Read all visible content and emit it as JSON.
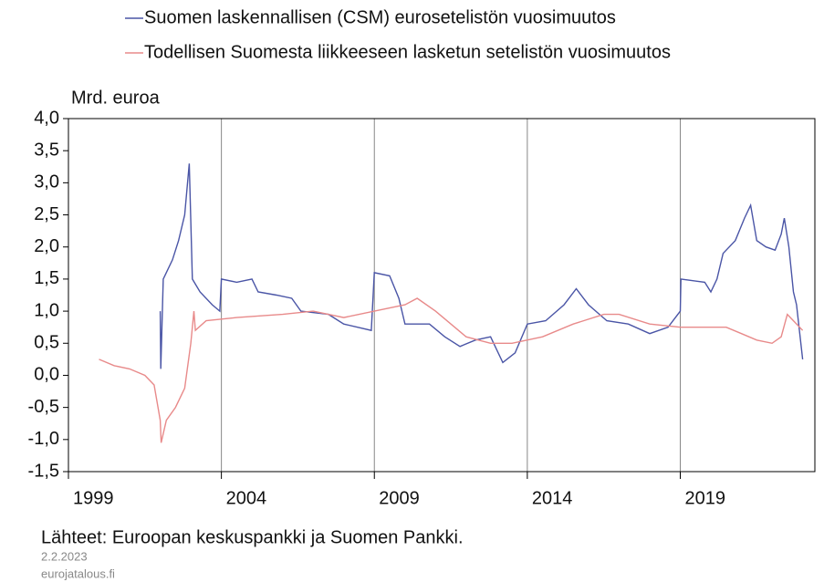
{
  "chart_data": {
    "type": "line",
    "y_axis_label": "Mrd. euroa",
    "source": "Lähteet: Euroopan keskuspankki ja Suomen Pankki.",
    "date": "2.2.2023",
    "site": "eurojatalous.fi",
    "xlim": [
      1999,
      2023.4
    ],
    "xticks": [
      1999,
      2004,
      2009,
      2014,
      2019
    ],
    "ylim": [
      -1.5,
      4.0
    ],
    "yticks": [
      {
        "value": 4.0,
        "label": "4,0"
      },
      {
        "value": 3.5,
        "label": "3,5"
      },
      {
        "value": 3.0,
        "label": "3,0"
      },
      {
        "value": 2.5,
        "label": "2,5"
      },
      {
        "value": 2.0,
        "label": "2,0"
      },
      {
        "value": 1.5,
        "label": "1,5"
      },
      {
        "value": 1.0,
        "label": "1,0"
      },
      {
        "value": 0.5,
        "label": "0,5"
      },
      {
        "value": 0.0,
        "label": "0,0"
      },
      {
        "value": -0.5,
        "label": "-0,5"
      },
      {
        "value": -1.0,
        "label": "-1,0"
      },
      {
        "value": -1.5,
        "label": "-1,5"
      }
    ],
    "grid": true,
    "series": [
      {
        "name": "Suomen laskennallisen (CSM) eurosetelistön vuosimuutos",
        "color": "#4a55a6",
        "x": [
          2002.0,
          2002.02,
          2002.1,
          2002.4,
          2002.6,
          2002.8,
          2002.95,
          2003.05,
          2003.3,
          2003.7,
          2003.95,
          2004.0,
          2004.5,
          2005.0,
          2005.2,
          2005.8,
          2006.3,
          2006.6,
          2007.5,
          2008.0,
          2008.9,
          2009.0,
          2009.5,
          2009.8,
          2010.0,
          2010.8,
          2011.3,
          2011.8,
          2012.3,
          2012.8,
          2013.2,
          2013.6,
          2014.0,
          2014.6,
          2015.2,
          2015.6,
          2016.0,
          2016.6,
          2017.3,
          2018.0,
          2018.6,
          2019.0,
          2019.02,
          2019.8,
          2020.0,
          2020.2,
          2020.4,
          2020.8,
          2021.1,
          2021.3,
          2021.5,
          2021.8,
          2022.1,
          2022.3,
          2022.4,
          2022.55,
          2022.7,
          2022.8,
          2023.0
        ],
        "values": [
          1.0,
          0.1,
          1.5,
          1.8,
          2.1,
          2.5,
          3.3,
          1.5,
          1.3,
          1.1,
          1.0,
          1.5,
          1.45,
          1.5,
          1.3,
          1.25,
          1.2,
          1.0,
          0.95,
          0.8,
          0.7,
          1.6,
          1.55,
          1.2,
          0.8,
          0.8,
          0.6,
          0.45,
          0.55,
          0.6,
          0.2,
          0.35,
          0.8,
          0.85,
          1.1,
          1.35,
          1.1,
          0.85,
          0.8,
          0.65,
          0.75,
          1.0,
          1.5,
          1.45,
          1.3,
          1.5,
          1.9,
          2.1,
          2.45,
          2.65,
          2.1,
          2.0,
          1.95,
          2.2,
          2.45,
          2.0,
          1.3,
          1.1,
          0.25
        ]
      },
      {
        "name": "Todellisen Suomesta liikkeeseen lasketun setelistön vuosimuutos",
        "color": "#e88a8a",
        "x": [
          2000.0,
          2000.5,
          2001.0,
          2001.5,
          2001.8,
          2002.0,
          2002.03,
          2002.2,
          2002.5,
          2002.8,
          2003.0,
          2003.1,
          2003.15,
          2003.5,
          2004.5,
          2006.0,
          2007.0,
          2008.0,
          2009.0,
          2010.0,
          2010.4,
          2011.0,
          2012.0,
          2012.8,
          2013.5,
          2014.5,
          2015.5,
          2016.5,
          2017.0,
          2018.0,
          2019.0,
          2020.0,
          2020.5,
          2021.0,
          2021.5,
          2022.0,
          2022.3,
          2022.5,
          2022.7,
          2023.0
        ],
        "values": [
          0.25,
          0.15,
          0.1,
          0.0,
          -0.15,
          -0.7,
          -1.05,
          -0.7,
          -0.5,
          -0.2,
          0.5,
          1.0,
          0.7,
          0.85,
          0.9,
          0.95,
          1.0,
          0.9,
          1.0,
          1.1,
          1.2,
          1.0,
          0.6,
          0.5,
          0.5,
          0.6,
          0.8,
          0.95,
          0.95,
          0.8,
          0.75,
          0.75,
          0.75,
          0.65,
          0.55,
          0.5,
          0.6,
          0.95,
          0.85,
          0.7
        ]
      }
    ]
  }
}
